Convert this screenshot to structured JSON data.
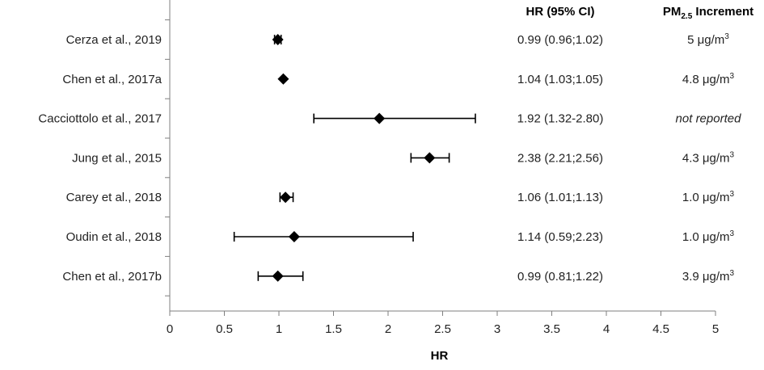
{
  "chart_data": {
    "type": "forest",
    "xlabel": "HR",
    "xlim": [
      0,
      5
    ],
    "xticks": [
      "0",
      "0.5",
      "1",
      "1.5",
      "2",
      "2.5",
      "3",
      "3.5",
      "4",
      "4.5",
      "5"
    ],
    "header_hr": "HR (95% CI)",
    "header_increment": {
      "base": "PM",
      "sub": "2.5",
      "rest": " Increment"
    },
    "studies": [
      {
        "name": "Cerza et al., 2019",
        "hr": 0.99,
        "lo": 0.96,
        "hi": 1.02,
        "ci_text": "0.99 (0.96;1.02)",
        "inc_value": "5 μg/m",
        "inc_sup": "3",
        "italic": false
      },
      {
        "name": "Chen et al., 2017a",
        "hr": 1.04,
        "lo": 1.03,
        "hi": 1.05,
        "ci_text": "1.04 (1.03;1.05)",
        "inc_value": "4.8 μg/m",
        "inc_sup": "3",
        "italic": false
      },
      {
        "name": "Cacciottolo et al., 2017",
        "hr": 1.92,
        "lo": 1.32,
        "hi": 2.8,
        "ci_text": "1.92 (1.32-2.80)",
        "inc_value": "not reported",
        "inc_sup": "",
        "italic": true
      },
      {
        "name": "Jung et al., 2015",
        "hr": 2.38,
        "lo": 2.21,
        "hi": 2.56,
        "ci_text": "2.38 (2.21;2.56)",
        "inc_value": "4.3 μg/m",
        "inc_sup": "3",
        "italic": false
      },
      {
        "name": "Carey et al., 2018",
        "hr": 1.06,
        "lo": 1.01,
        "hi": 1.13,
        "ci_text": "1.06 (1.01;1.13)",
        "inc_value": "1.0 μg/m",
        "inc_sup": "3",
        "italic": false
      },
      {
        "name": "Oudin et al., 2018",
        "hr": 1.14,
        "lo": 0.59,
        "hi": 2.23,
        "ci_text": "1.14 (0.59;2.23)",
        "inc_value": "1.0 μg/m",
        "inc_sup": "3",
        "italic": false
      },
      {
        "name": "Chen et al., 2017b",
        "hr": 0.99,
        "lo": 0.81,
        "hi": 1.22,
        "ci_text": "0.99 (0.81;1.22)",
        "inc_value": "3.9 μg/m",
        "inc_sup": "3",
        "italic": false
      }
    ]
  }
}
